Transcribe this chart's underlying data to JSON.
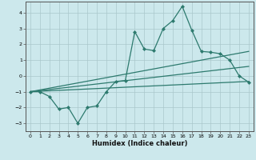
{
  "xlabel": "Humidex (Indice chaleur)",
  "xlim": [
    -0.5,
    23.5
  ],
  "ylim": [
    -3.5,
    4.7
  ],
  "yticks": [
    -3,
    -2,
    -1,
    0,
    1,
    2,
    3,
    4
  ],
  "xticks": [
    0,
    1,
    2,
    3,
    4,
    5,
    6,
    7,
    8,
    9,
    10,
    11,
    12,
    13,
    14,
    15,
    16,
    17,
    18,
    19,
    20,
    21,
    22,
    23
  ],
  "bg_color": "#cce8ec",
  "line_color": "#2d7a6e",
  "main_x": [
    0,
    1,
    2,
    3,
    4,
    5,
    6,
    7,
    8,
    9,
    10,
    11,
    12,
    13,
    14,
    15,
    16,
    17,
    18,
    19,
    20,
    21,
    22,
    23
  ],
  "main_y": [
    -1.0,
    -1.0,
    -1.3,
    -2.1,
    -2.0,
    -3.0,
    -2.0,
    -1.9,
    -1.0,
    -0.35,
    -0.3,
    2.8,
    1.7,
    1.6,
    3.0,
    3.5,
    4.4,
    2.9,
    1.55,
    1.5,
    1.4,
    1.0,
    0.0,
    -0.4
  ],
  "upper_line_x": [
    0,
    23
  ],
  "upper_line_y": [
    -1.0,
    1.55
  ],
  "lower_line_x": [
    0,
    23
  ],
  "lower_line_y": [
    -1.0,
    -0.35
  ],
  "mid_line_x": [
    0,
    23
  ],
  "mid_line_y": [
    -1.0,
    0.6
  ]
}
